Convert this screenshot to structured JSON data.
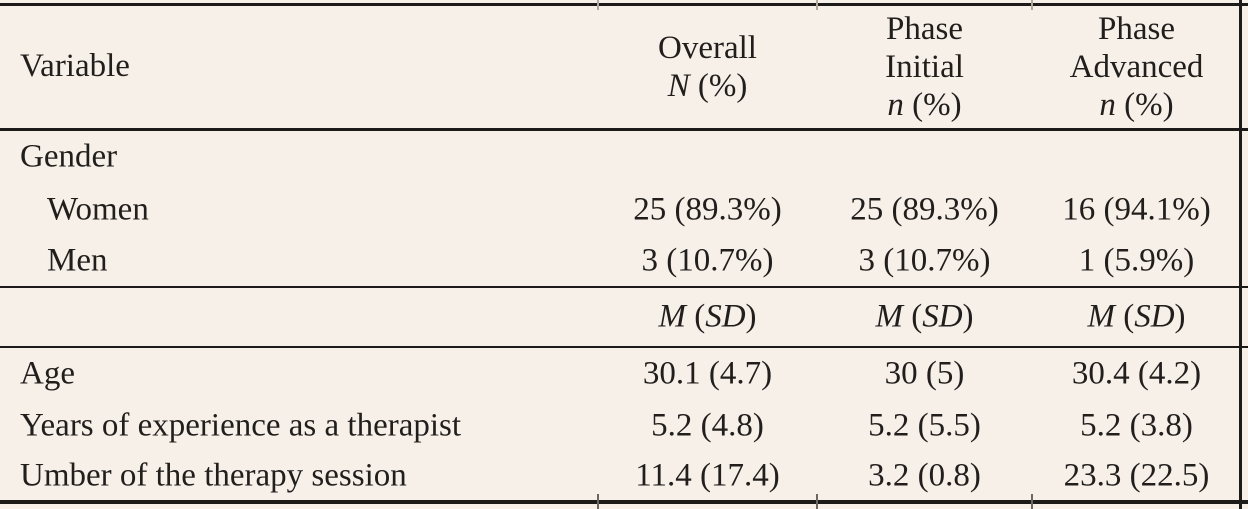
{
  "table": {
    "header": {
      "variable_label": "Variable",
      "columns": [
        {
          "lines": [
            "Overall"
          ],
          "symbol": "N",
          "unit": " (%)"
        },
        {
          "lines": [
            "Phase",
            "Initial"
          ],
          "symbol": "n",
          "unit": " (%)"
        },
        {
          "lines": [
            "Phase",
            "Advanced"
          ],
          "symbol": "n",
          "unit": " (%)"
        }
      ]
    },
    "stat_header": {
      "m": "M",
      "open": " (",
      "sd": "SD",
      "close": ")"
    },
    "rows": [
      {
        "label": "Gender",
        "values": [
          "",
          "",
          ""
        ]
      },
      {
        "label": "Women",
        "values": [
          "25 (89.3%)",
          "25 (89.3%)",
          "16 (94.1%)"
        ]
      },
      {
        "label": "Men",
        "values": [
          "3 (10.7%)",
          "3 (10.7%)",
          "1 (5.9%)"
        ]
      },
      {
        "label": "Age",
        "values": [
          "30.1 (4.7)",
          "30 (5)",
          "30.4 (4.2)"
        ]
      },
      {
        "label": "Years of experience as a therapist",
        "values": [
          "5.2 (4.8)",
          "5.2 (5.5)",
          "5.2 (3.8)"
        ]
      },
      {
        "label": "Umber of the therapy session",
        "values": [
          "11.4 (17.4)",
          "3.2 (0.8)",
          "23.3 (22.5)"
        ]
      }
    ],
    "colors": {
      "background": "#f6f0e9",
      "rule": "#1d1b19",
      "text": "#211e1c"
    }
  },
  "chart_data": {
    "type": "table",
    "columns": [
      "Variable",
      "Overall N (%)",
      "Phase Initial n (%)",
      "Phase Advanced n (%)"
    ],
    "rows": [
      [
        "Gender",
        "",
        "",
        ""
      ],
      [
        "Women",
        "25 (89.3%)",
        "25 (89.3%)",
        "16 (94.1%)"
      ],
      [
        "Men",
        "3 (10.7%)",
        "3 (10.7%)",
        "1 (5.9%)"
      ],
      [
        "",
        "M (SD)",
        "M (SD)",
        "M (SD)"
      ],
      [
        "Age",
        "30.1 (4.7)",
        "30 (5)",
        "30.4 (4.2)"
      ],
      [
        "Years of experience as a therapist",
        "5.2 (4.8)",
        "5.2 (5.5)",
        "5.2 (3.8)"
      ],
      [
        "Umber of the therapy session",
        "11.4 (17.4)",
        "3.2 (0.8)",
        "23.3 (22.5)"
      ]
    ]
  }
}
